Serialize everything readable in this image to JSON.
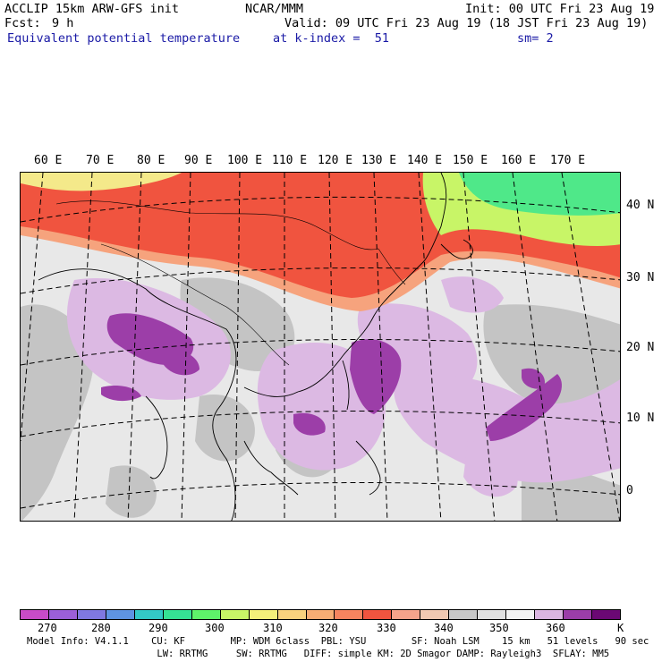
{
  "header": {
    "model_line": "ACCLIP 15km ARW-GFS init",
    "center": "NCAR/MMM",
    "init": "Init: 00 UTC Fri 23 Aug 19",
    "fcst_label": "Fcst:",
    "fcst_value": "9 h",
    "valid": "Valid: 09 UTC Fri 23 Aug 19 (18 JST Fri 23 Aug 19)",
    "field": "Equivalent potential temperature",
    "level": "at k-index =  51",
    "smooth": "sm= 2"
  },
  "map": {
    "longitude_labels": [
      "60 E",
      "70 E",
      "80 E",
      "90 E",
      "100 E",
      "110 E",
      "120 E",
      "130 E",
      "140 E",
      "150 E",
      "160 E",
      "170 E"
    ],
    "latitude_labels": [
      "40 N",
      "30 N",
      "20 N",
      "10 N",
      "0"
    ],
    "colors": {
      "hot": "#f0543f",
      "warm": "#f6a37d",
      "yellow": "#f4e98a",
      "green": "#4fe889",
      "gray": "#c0c0c0",
      "lightgray": "#ececec",
      "lilac": "#dcb9e3",
      "purple": "#9c3ea8"
    }
  },
  "colorbar": {
    "colors": [
      "#c84bc7",
      "#9b5fd8",
      "#7f78e0",
      "#5e93e2",
      "#33c9c6",
      "#35e294",
      "#5ef26a",
      "#c8f567",
      "#f4f07a",
      "#f8d27e",
      "#f7ad74",
      "#f6845f",
      "#f1543f",
      "#f5a38b",
      "#f0c9b2",
      "#c7c7c7",
      "#e0e0e0",
      "#f2f2f2",
      "#dab5e0",
      "#9b3da8",
      "#6b0874"
    ],
    "tick_labels": [
      "270",
      "280",
      "290",
      "300",
      "310",
      "320",
      "330",
      "340",
      "350",
      "360"
    ],
    "unit": "K"
  },
  "model_info": {
    "line1": "Model Info: V4.1.1    CU: KF        MP: WDM 6class  PBL: YSU        SF: Noah LSM    15 km   51 levels   90 sec",
    "line2": "                       LW: RRTMG     SW: RRTMG   DIFF: simple KM: 2D Smagor DAMP: Rayleigh3  SFLAY: MM5"
  }
}
